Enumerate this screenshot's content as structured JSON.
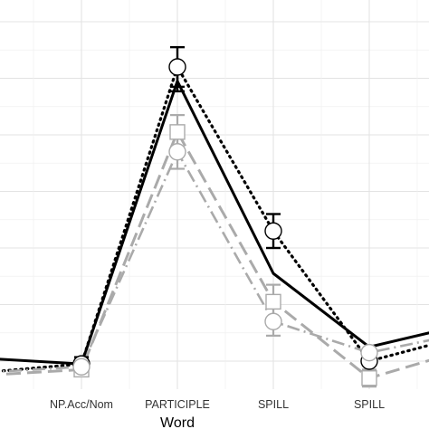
{
  "chart_data": {
    "type": "line",
    "xlabel": "Word",
    "ylabel": "",
    "categories": [
      "",
      "NP.Acc/Nom",
      "PARTICIPLE",
      "SPILL",
      "SPILL",
      ""
    ],
    "ylim": [
      0,
      7
    ],
    "grid": true,
    "legend": "none",
    "series": [
      {
        "style": "solid",
        "color": "#000000",
        "marker": "none",
        "values": [
          1.05,
          0.95,
          5.95,
          2.55,
          1.25,
          1.65
        ],
        "errors": [
          null,
          0.12,
          0.18,
          null,
          null,
          null
        ]
      },
      {
        "style": "dotted",
        "color": "#000000",
        "marker": "circle",
        "values": [
          0.8,
          0.95,
          6.2,
          3.3,
          1.0,
          1.45
        ],
        "errors": [
          null,
          null,
          0.35,
          0.3,
          0.18,
          null
        ]
      },
      {
        "style": "longdash",
        "color": "#aaaaaa",
        "marker": "square",
        "values": [
          0.75,
          0.85,
          5.05,
          2.05,
          0.7,
          1.2
        ],
        "errors": [
          null,
          0.12,
          0.3,
          0.3,
          0.15,
          null
        ]
      },
      {
        "style": "dotdash",
        "color": "#aaaaaa",
        "marker": "circle",
        "values": [
          0.8,
          0.9,
          4.7,
          1.7,
          1.15,
          1.5
        ],
        "errors": [
          null,
          null,
          0.3,
          0.25,
          null,
          null
        ]
      }
    ]
  }
}
